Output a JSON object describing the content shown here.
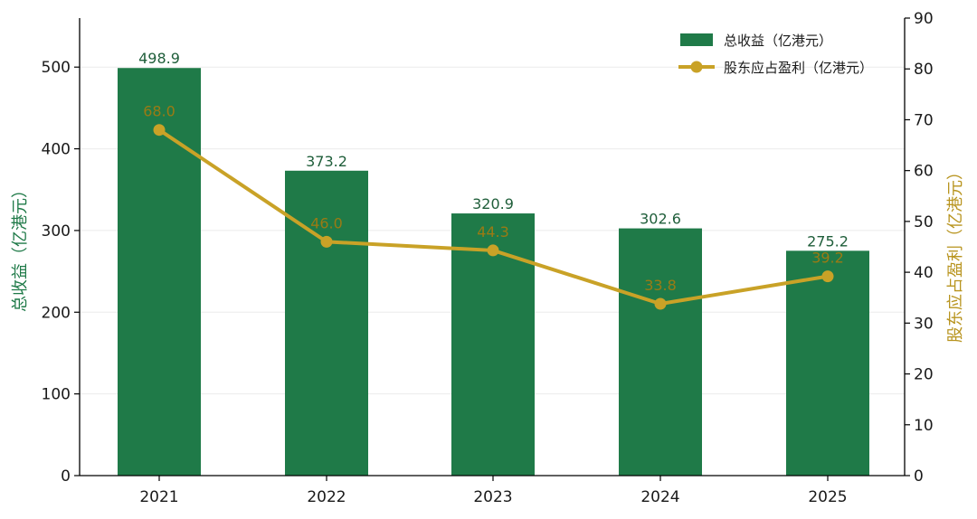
{
  "chart_data": {
    "type": "bar",
    "categories": [
      "2021",
      "2022",
      "2023",
      "2024",
      "2025"
    ],
    "series": [
      {
        "name": "总收益（亿港元）",
        "type": "bar",
        "axis": "left",
        "values": [
          498.9,
          373.2,
          320.9,
          302.6,
          275.2
        ],
        "labels": [
          "498.9",
          "373.2",
          "320.9",
          "302.6",
          "275.2"
        ],
        "color": "#1f7a48"
      },
      {
        "name": "股东应占盈利（亿港元）",
        "type": "line",
        "axis": "right",
        "values": [
          68.0,
          46.0,
          44.3,
          33.8,
          39.2
        ],
        "labels": [
          "68.0",
          "46.0",
          "44.3",
          "33.8",
          "39.2"
        ],
        "color": "#c9a227",
        "label_color": "#9a7a14"
      }
    ],
    "ylabel_left": "总收益（亿港元）",
    "ylabel_right": "股东应占盈利（亿港元）",
    "ylim_left": [
      0,
      560
    ],
    "yticks_left": [
      "0",
      "100",
      "200",
      "300",
      "400",
      "500"
    ],
    "ylim_right": [
      0,
      90
    ],
    "yticks_right": [
      "0",
      "10",
      "20",
      "30",
      "40",
      "50",
      "60",
      "70",
      "80",
      "90"
    ],
    "grid": "horizontal",
    "legend_position": "top-right",
    "left_axis_title_color": "#1f7a48",
    "right_axis_title_color": "#b8941f"
  }
}
